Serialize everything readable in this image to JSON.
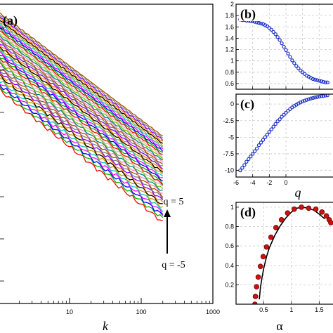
{
  "chart_data": [
    {
      "panel": "a",
      "type": "line",
      "label": "(a)",
      "xlabel": "k",
      "xscale": "log",
      "xlim": [
        1,
        1000
      ],
      "x_tick_labels": [
        "10",
        "100",
        "1000"
      ],
      "x": [
        1,
        2,
        5,
        10,
        20,
        50,
        100,
        200
      ],
      "series_count": 41,
      "q_range": [
        -5,
        5
      ],
      "top_series_start": 1.55,
      "bottom_series_start": 1.05,
      "top_series_end": 0.74,
      "bottom_series_end": 0.18,
      "annotation_top": "q = 5",
      "annotation_bottom": "q = -5",
      "palette": [
        "#ff0000",
        "#00b000",
        "#0000ff",
        "#ff00ff",
        "#00c8c8",
        "#c8a000",
        "#000000",
        "#ff8000",
        "#8000ff",
        "#808080",
        "#a05000",
        "#ff80c0",
        "#008080",
        "#80c000",
        "#c0c0c0"
      ]
    },
    {
      "panel": "b",
      "type": "scatter",
      "label": "(b)",
      "xlim": [
        -6,
        6
      ],
      "ylim": [
        0.5,
        2.0
      ],
      "y_ticks": [
        0.6,
        0.8,
        1.0,
        1.2,
        1.4,
        1.6,
        1.8,
        2.0
      ],
      "y_tick_labels": [
        "0.6",
        "0.8",
        "1",
        "1.2",
        "1.4",
        "1.6",
        "1.8",
        "2"
      ],
      "grid": true,
      "marker_color": "#2233cc",
      "q": [
        -5.5,
        -5.25,
        -5.0,
        -4.75,
        -4.5,
        -4.25,
        -4.0,
        -3.75,
        -3.5,
        -3.25,
        -3.0,
        -2.75,
        -2.5,
        -2.25,
        -2.0,
        -1.75,
        -1.5,
        -1.25,
        -1.0,
        -0.75,
        -0.5,
        -0.25,
        0.0,
        0.25,
        0.5,
        0.75,
        1.0,
        1.25,
        1.5,
        1.75,
        2.0,
        2.25,
        2.5,
        2.75,
        3.0,
        3.25,
        3.5,
        3.75,
        4.0,
        4.25,
        4.5,
        4.75,
        5.0
      ],
      "h": [
        1.73,
        1.72,
        1.72,
        1.71,
        1.71,
        1.7,
        1.7,
        1.69,
        1.68,
        1.67,
        1.66,
        1.65,
        1.63,
        1.61,
        1.58,
        1.55,
        1.51,
        1.47,
        1.42,
        1.37,
        1.31,
        1.25,
        1.19,
        1.13,
        1.07,
        1.01,
        0.96,
        0.91,
        0.87,
        0.83,
        0.8,
        0.77,
        0.74,
        0.72,
        0.7,
        0.68,
        0.67,
        0.66,
        0.65,
        0.64,
        0.63,
        0.62,
        0.62
      ]
    },
    {
      "panel": "c",
      "type": "scatter",
      "label": "(c)",
      "xlabel": "q",
      "xlim": [
        -6,
        6
      ],
      "ylim": [
        -11,
        1.5
      ],
      "x_ticks": [
        -6,
        -4,
        -2,
        0
      ],
      "x_tick_labels": [
        "-6",
        "-4",
        "-2",
        "0"
      ],
      "y_ticks": [
        -10,
        -7.5,
        -5,
        -2.5,
        0
      ],
      "y_tick_labels": [
        "-10",
        "-7.5",
        "-5",
        "-2.5",
        "0"
      ],
      "grid": true,
      "marker_color": "#2233cc",
      "q": [
        -5.5,
        -5.25,
        -5.0,
        -4.75,
        -4.5,
        -4.25,
        -4.0,
        -3.75,
        -3.5,
        -3.25,
        -3.0,
        -2.75,
        -2.5,
        -2.25,
        -2.0,
        -1.75,
        -1.5,
        -1.25,
        -1.0,
        -0.75,
        -0.5,
        -0.25,
        0.0,
        0.25,
        0.5,
        0.75,
        1.0,
        1.25,
        1.5,
        1.75,
        2.0,
        2.25,
        2.5,
        2.75,
        3.0,
        3.25,
        3.5,
        3.75,
        4.0,
        4.25,
        4.5,
        4.75,
        5.0
      ],
      "tau": [
        -10.0,
        -9.6,
        -9.2,
        -8.7,
        -8.3,
        -7.9,
        -7.5,
        -7.1,
        -6.7,
        -6.2,
        -5.8,
        -5.4,
        -5.0,
        -4.6,
        -4.2,
        -3.8,
        -3.4,
        -3.0,
        -2.6,
        -2.3,
        -1.9,
        -1.6,
        -1.3,
        -1.0,
        -0.75,
        -0.5,
        -0.28,
        -0.1,
        0.1,
        0.25,
        0.4,
        0.52,
        0.64,
        0.74,
        0.84,
        0.92,
        1.0,
        1.07,
        1.13,
        1.19,
        1.24,
        1.29,
        1.33
      ]
    },
    {
      "panel": "d",
      "type": "scatter",
      "label": "(d)",
      "xlabel": "α",
      "xlim": [
        0,
        1.8
      ],
      "ylim": [
        0,
        1.05
      ],
      "x_ticks": [
        0.5,
        1.0,
        1.5
      ],
      "x_tick_labels": [
        "0.5",
        "1",
        "1.5"
      ],
      "y_ticks": [
        0.2,
        0.4,
        0.6,
        0.8,
        1.0
      ],
      "y_tick_labels": [
        "0.2",
        "0.4",
        "0.6",
        "0.8",
        "1"
      ],
      "grid": true,
      "marker_color": "#cc1111",
      "marker_edge": "#6b0000",
      "points_alpha": [
        0.34,
        0.35,
        0.37,
        0.4,
        0.44,
        0.49,
        0.55,
        0.63,
        0.72,
        0.82,
        0.93,
        1.05,
        1.18,
        1.31,
        1.44,
        1.55,
        1.63,
        1.68,
        1.71
      ],
      "points_f": [
        0.0,
        0.08,
        0.18,
        0.28,
        0.39,
        0.49,
        0.59,
        0.69,
        0.79,
        0.87,
        0.94,
        0.98,
        1.0,
        0.99,
        0.98,
        0.95,
        0.91,
        0.87,
        0.84
      ],
      "fit_alpha": [
        0.42,
        0.44,
        0.47,
        0.5,
        0.55,
        0.6,
        0.7,
        0.8,
        0.9,
        1.0,
        1.1,
        1.2,
        1.3,
        1.4,
        1.5,
        1.6
      ],
      "fit_f": [
        0.05,
        0.17,
        0.28,
        0.37,
        0.49,
        0.58,
        0.71,
        0.81,
        0.89,
        0.95,
        0.99,
        1.0,
        0.99,
        0.97,
        0.93,
        0.88
      ]
    }
  ]
}
